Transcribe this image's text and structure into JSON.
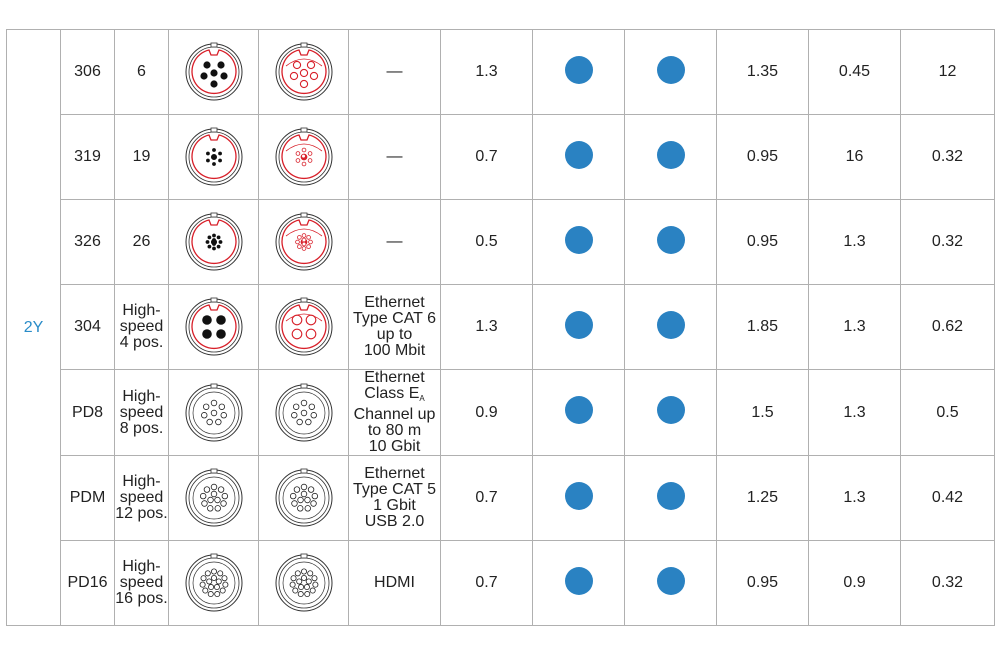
{
  "colors": {
    "series_text": "#2a8cc8",
    "dot": "#2a82c2",
    "coding_line": "#d8202a",
    "border": "#b0b0b0"
  },
  "series": "2Y",
  "rows": [
    {
      "code": "306",
      "contacts": [
        "6"
      ],
      "plug": {
        "icon": "connector-face-6-contacts",
        "style": "red-coding"
      },
      "socket_icon": "connector-socket-6",
      "application": [
        "—"
      ],
      "v1": "1.3",
      "dot_a": "filled-blue-circle",
      "dot_b": "filled-blue-circle",
      "v2": "1.35",
      "v3": "0.45",
      "v4": "12"
    },
    {
      "code": "319",
      "contacts": [
        "19"
      ],
      "plug": {
        "icon": "connector-face-19-contacts",
        "style": "red-coding"
      },
      "socket_icon": "connector-socket-19",
      "application": [
        "—"
      ],
      "v1": "0.7",
      "dot_a": "filled-blue-circle",
      "dot_b": "filled-blue-circle",
      "v2": "0.95",
      "v3": "16",
      "v4": "0.32"
    },
    {
      "code": "326",
      "contacts": [
        "26"
      ],
      "plug": {
        "icon": "connector-face-26-contacts",
        "style": "red-coding"
      },
      "socket_icon": "connector-socket-26",
      "application": [
        "—"
      ],
      "v1": "0.5",
      "dot_a": "filled-blue-circle",
      "dot_b": "filled-blue-circle",
      "v2": "0.95",
      "v3": "1.3",
      "v4": "0.32"
    },
    {
      "code": "304",
      "contacts": [
        "High-",
        "speed",
        "4 pos."
      ],
      "plug": {
        "icon": "connector-face-4-contacts",
        "style": "red-coding"
      },
      "socket_icon": "connector-socket-4",
      "application": [
        "Ethernet",
        "Type CAT  6",
        "up to",
        "100 Mbit"
      ],
      "v1": "1.3",
      "dot_a": "filled-blue-circle",
      "dot_b": "filled-blue-circle",
      "v2": "1.85",
      "v3": "1.3",
      "v4": "0.62"
    },
    {
      "code": "PD8",
      "contacts": [
        "High-",
        "speed",
        "8 pos."
      ],
      "plug": {
        "icon": "connector-face-8-contacts",
        "style": "numbered"
      },
      "socket_icon": "connector-socket-8",
      "application": [
        "Ethernet",
        "Class E",
        "Channel up",
        "to 80 m",
        "10 Gbit"
      ],
      "app_sub": "A",
      "v1": "0.9",
      "dot_a": "filled-blue-circle",
      "dot_b": "filled-blue-circle",
      "v2": "1.5",
      "v3": "1.3",
      "v4": "0.5"
    },
    {
      "code": "PDM",
      "contacts": [
        "High-",
        "speed",
        "12 pos."
      ],
      "plug": {
        "icon": "connector-face-12-contacts",
        "style": "numbered"
      },
      "socket_icon": "connector-socket-12",
      "application": [
        "Ethernet",
        "Type CAT  5",
        "1 Gbit",
        "USB 2.0"
      ],
      "v1": "0.7",
      "dot_a": "filled-blue-circle",
      "dot_b": "filled-blue-circle",
      "v2": "1.25",
      "v3": "1.3",
      "v4": "0.42"
    },
    {
      "code": "PD16",
      "contacts": [
        "High-",
        "speed",
        "16 pos."
      ],
      "plug": {
        "icon": "connector-face-16-contacts",
        "style": "numbered"
      },
      "socket_icon": "connector-socket-16",
      "application": [
        "HDMI"
      ],
      "v1": "0.7",
      "dot_a": "filled-blue-circle",
      "dot_b": "filled-blue-circle",
      "v2": "0.95",
      "v3": "0.9",
      "v4": "0.32"
    }
  ]
}
